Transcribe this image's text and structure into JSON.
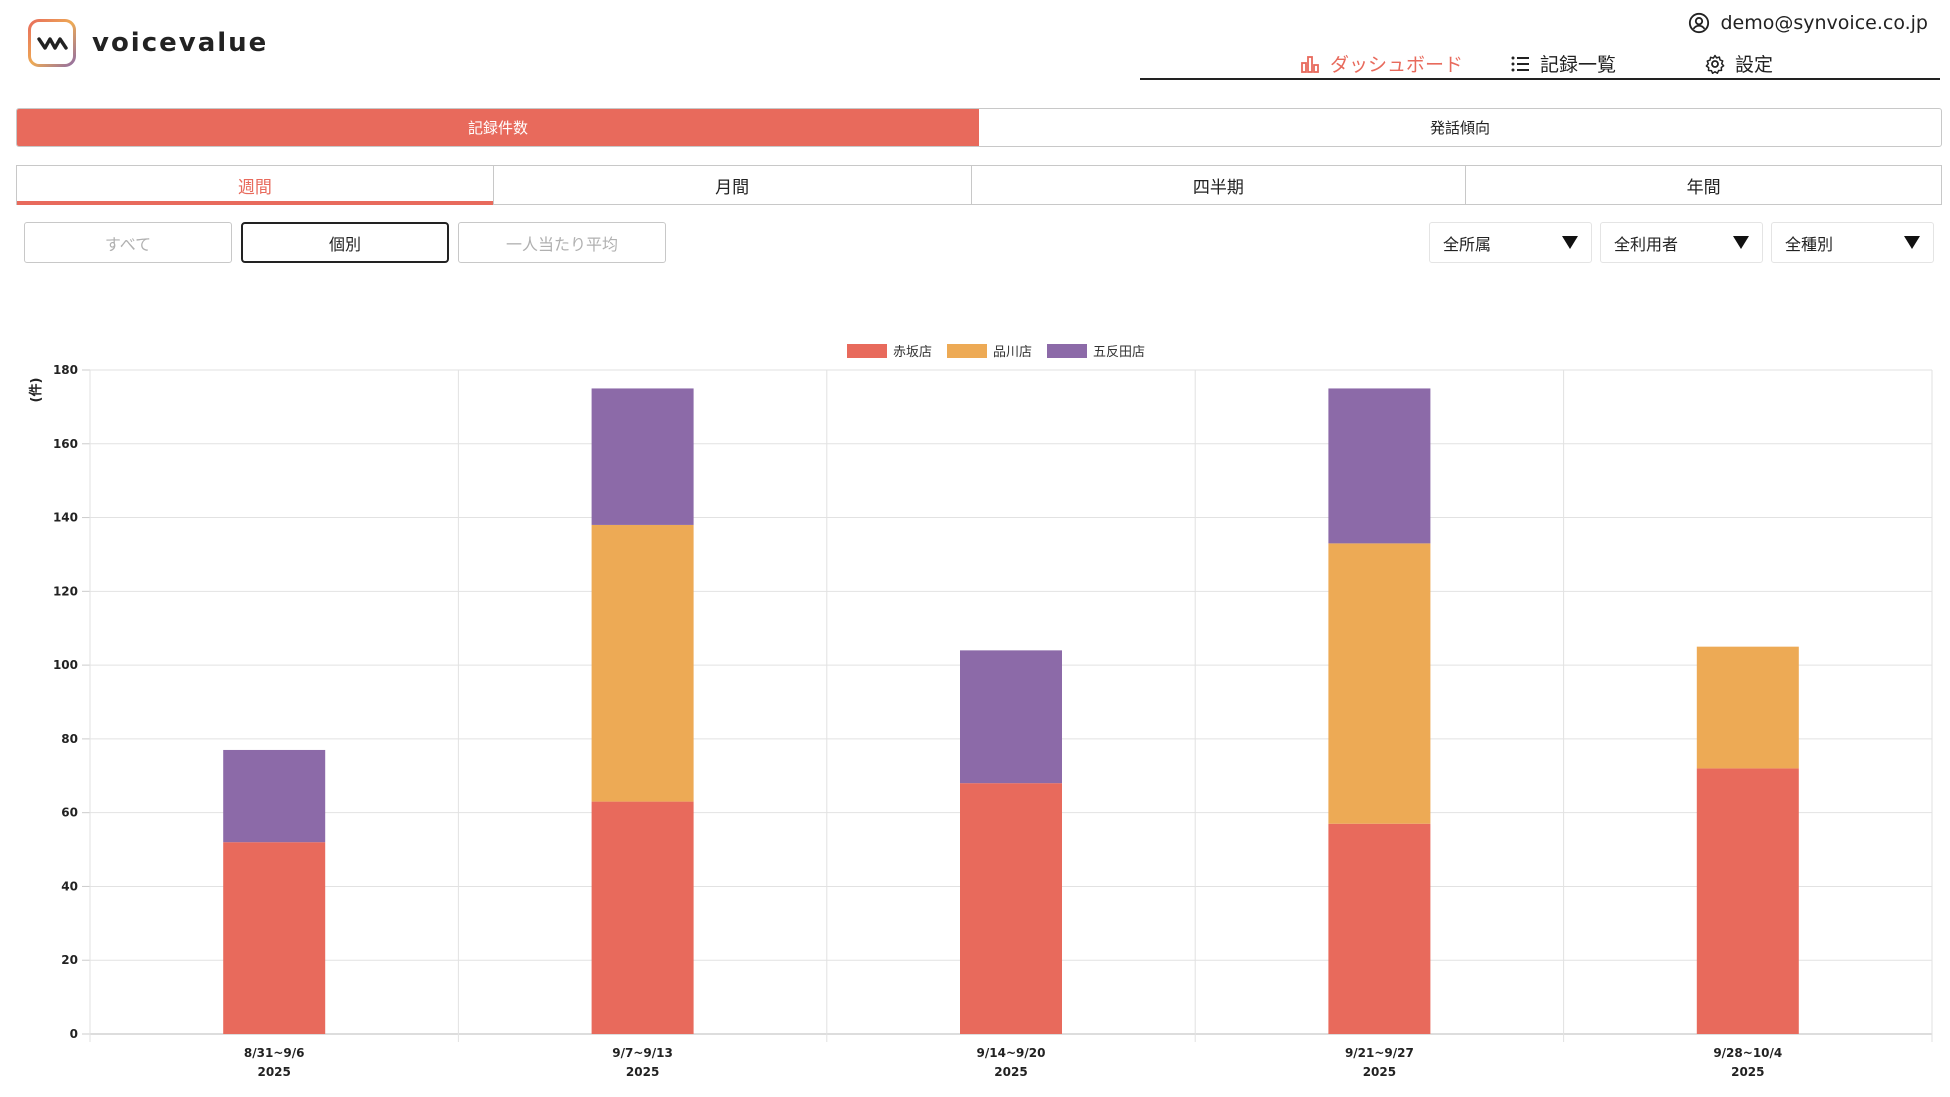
{
  "brand": {
    "name": "voicevalue"
  },
  "header": {
    "user_email": "demo@synvoice.co.jp",
    "nav": [
      {
        "label": "ダッシュボード",
        "icon": "bar-chart-icon",
        "active": true
      },
      {
        "label": "記録一覧",
        "icon": "list-icon",
        "active": false
      },
      {
        "label": "設定",
        "icon": "gear-icon",
        "active": false
      }
    ]
  },
  "main_tabs": [
    {
      "label": "記録件数",
      "active": true
    },
    {
      "label": "発話傾向",
      "active": false
    }
  ],
  "period_tabs": [
    {
      "label": "週間",
      "active": true
    },
    {
      "label": "月間",
      "active": false
    },
    {
      "label": "四半期",
      "active": false
    },
    {
      "label": "年間",
      "active": false
    }
  ],
  "modes": [
    {
      "label": "すべて",
      "selected": false
    },
    {
      "label": "個別",
      "selected": true
    },
    {
      "label": "一人当たり平均",
      "selected": false
    }
  ],
  "filters": [
    {
      "label": "全所属"
    },
    {
      "label": "全利用者"
    },
    {
      "label": "全種別"
    }
  ],
  "colors": {
    "accent": "#e86a5c",
    "akasaka": "#e86a5c",
    "shinagawa": "#edaa55",
    "gotanda": "#8c6aa8"
  },
  "chart_data": {
    "type": "bar",
    "stacked": true,
    "ylabel": "(件)",
    "ylim": [
      0,
      180
    ],
    "yticks": [
      0,
      20,
      40,
      60,
      80,
      100,
      120,
      140,
      160,
      180
    ],
    "legend_position": "top",
    "grid": true,
    "categories": [
      "8/31~9/6",
      "9/7~9/13",
      "9/14~9/20",
      "9/21~9/27",
      "9/28~10/4"
    ],
    "category_years": [
      "2025",
      "2025",
      "2025",
      "2025",
      "2025"
    ],
    "series": [
      {
        "name": "赤坂店",
        "color": "#e86a5c",
        "values": [
          52,
          63,
          68,
          57,
          72
        ]
      },
      {
        "name": "品川店",
        "color": "#edaa55",
        "values": [
          0,
          75,
          0,
          76,
          33
        ]
      },
      {
        "name": "五反田店",
        "color": "#8c6aa8",
        "values": [
          25,
          37,
          36,
          42,
          0
        ]
      }
    ]
  }
}
